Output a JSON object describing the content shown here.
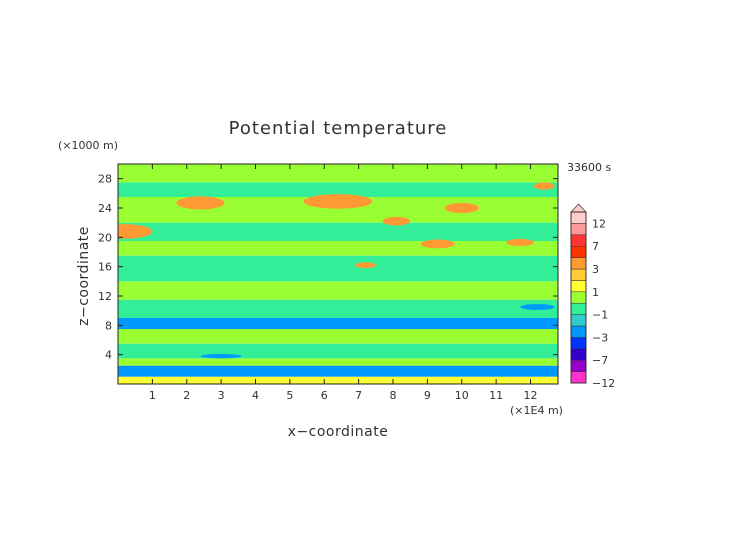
{
  "chart_data": {
    "type": "heatmap",
    "title": "Potential temperature",
    "xlabel": "x−coordinate",
    "ylabel": "z−coordinate",
    "x_unit": "(×1E4 m)",
    "y_unit": "(×1000 m)",
    "time_label": "33600 s",
    "xlim": [
      0,
      12.8
    ],
    "ylim": [
      0,
      30
    ],
    "x_ticks": [
      1,
      2,
      3,
      4,
      5,
      6,
      7,
      8,
      9,
      10,
      11,
      12
    ],
    "y_ticks": [
      4,
      8,
      12,
      16,
      20,
      24,
      28
    ],
    "grid": false,
    "colorbar": {
      "placement": "right",
      "levels": [
        -12,
        -9,
        -7,
        -5,
        -3,
        -2,
        -1,
        0,
        1,
        2,
        3,
        5,
        7,
        9,
        12
      ],
      "colors": [
        "#ff33cc",
        "#9900cc",
        "#3300cc",
        "#0033ff",
        "#0099ff",
        "#33cccc",
        "#33ee99",
        "#99ff33",
        "#ffff33",
        "#ffcc33",
        "#ff9933",
        "#ff3300",
        "#ff3333",
        "#ff9999",
        "#ffcccc"
      ],
      "tick_labels": [
        "12",
        "7",
        "3",
        "1",
        "−1",
        "−3",
        "−7",
        "−12"
      ],
      "tick_values": [
        12,
        7,
        3,
        1,
        -1,
        -3,
        -7,
        -12
      ]
    },
    "z_bands": [
      {
        "z": [
          0,
          1.0
        ],
        "value": 1.5
      },
      {
        "z": [
          1.0,
          2.5
        ],
        "value": -2.5
      },
      {
        "z": [
          2.5,
          3.5
        ],
        "value": 0.5
      },
      {
        "z": [
          3.5,
          5.5
        ],
        "value": -0.5
      },
      {
        "z": [
          5.5,
          7.5
        ],
        "value": 0.5
      },
      {
        "z": [
          7.5,
          9.0
        ],
        "value": -2.5
      },
      {
        "z": [
          9.0,
          11.5
        ],
        "value": -0.5
      },
      {
        "z": [
          11.5,
          14.0
        ],
        "value": 0.5
      },
      {
        "z": [
          14.0,
          17.5
        ],
        "value": -0.5
      },
      {
        "z": [
          17.5,
          19.5
        ],
        "value": 0.5
      },
      {
        "z": [
          19.5,
          22.0
        ],
        "value": -0.5
      },
      {
        "z": [
          22.0,
          25.5
        ],
        "value": 0.5
      },
      {
        "z": [
          25.5,
          27.5
        ],
        "value": -0.5
      },
      {
        "z": [
          27.5,
          30.0
        ],
        "value": 0.5
      }
    ],
    "patches": [
      {
        "x": 0.2,
        "z": 20.8,
        "rx": 0.8,
        "rz": 1.0,
        "value": 4
      },
      {
        "x": 2.4,
        "z": 24.7,
        "rx": 0.7,
        "rz": 0.9,
        "value": 4
      },
      {
        "x": 6.4,
        "z": 24.9,
        "rx": 1.0,
        "rz": 1.0,
        "value": 4
      },
      {
        "x": 8.1,
        "z": 22.2,
        "rx": 0.4,
        "rz": 0.6,
        "value": 4
      },
      {
        "x": 9.3,
        "z": 19.1,
        "rx": 0.5,
        "rz": 0.6,
        "value": 4
      },
      {
        "x": 10.0,
        "z": 24.0,
        "rx": 0.5,
        "rz": 0.7,
        "value": 4
      },
      {
        "x": 11.7,
        "z": 19.3,
        "rx": 0.4,
        "rz": 0.5,
        "value": 4
      },
      {
        "x": 12.4,
        "z": 27.0,
        "rx": 0.3,
        "rz": 0.5,
        "value": 4
      },
      {
        "x": 7.2,
        "z": 16.2,
        "rx": 0.3,
        "rz": 0.4,
        "value": 4
      },
      {
        "x": 3.0,
        "z": 3.8,
        "rx": 0.6,
        "rz": 0.3,
        "value": -2.5
      },
      {
        "x": 9.0,
        "z": 2.0,
        "rx": 0.8,
        "rz": 0.4,
        "value": -2.5
      },
      {
        "x": 12.2,
        "z": 10.5,
        "rx": 0.5,
        "rz": 0.4,
        "value": -2.5
      }
    ]
  }
}
